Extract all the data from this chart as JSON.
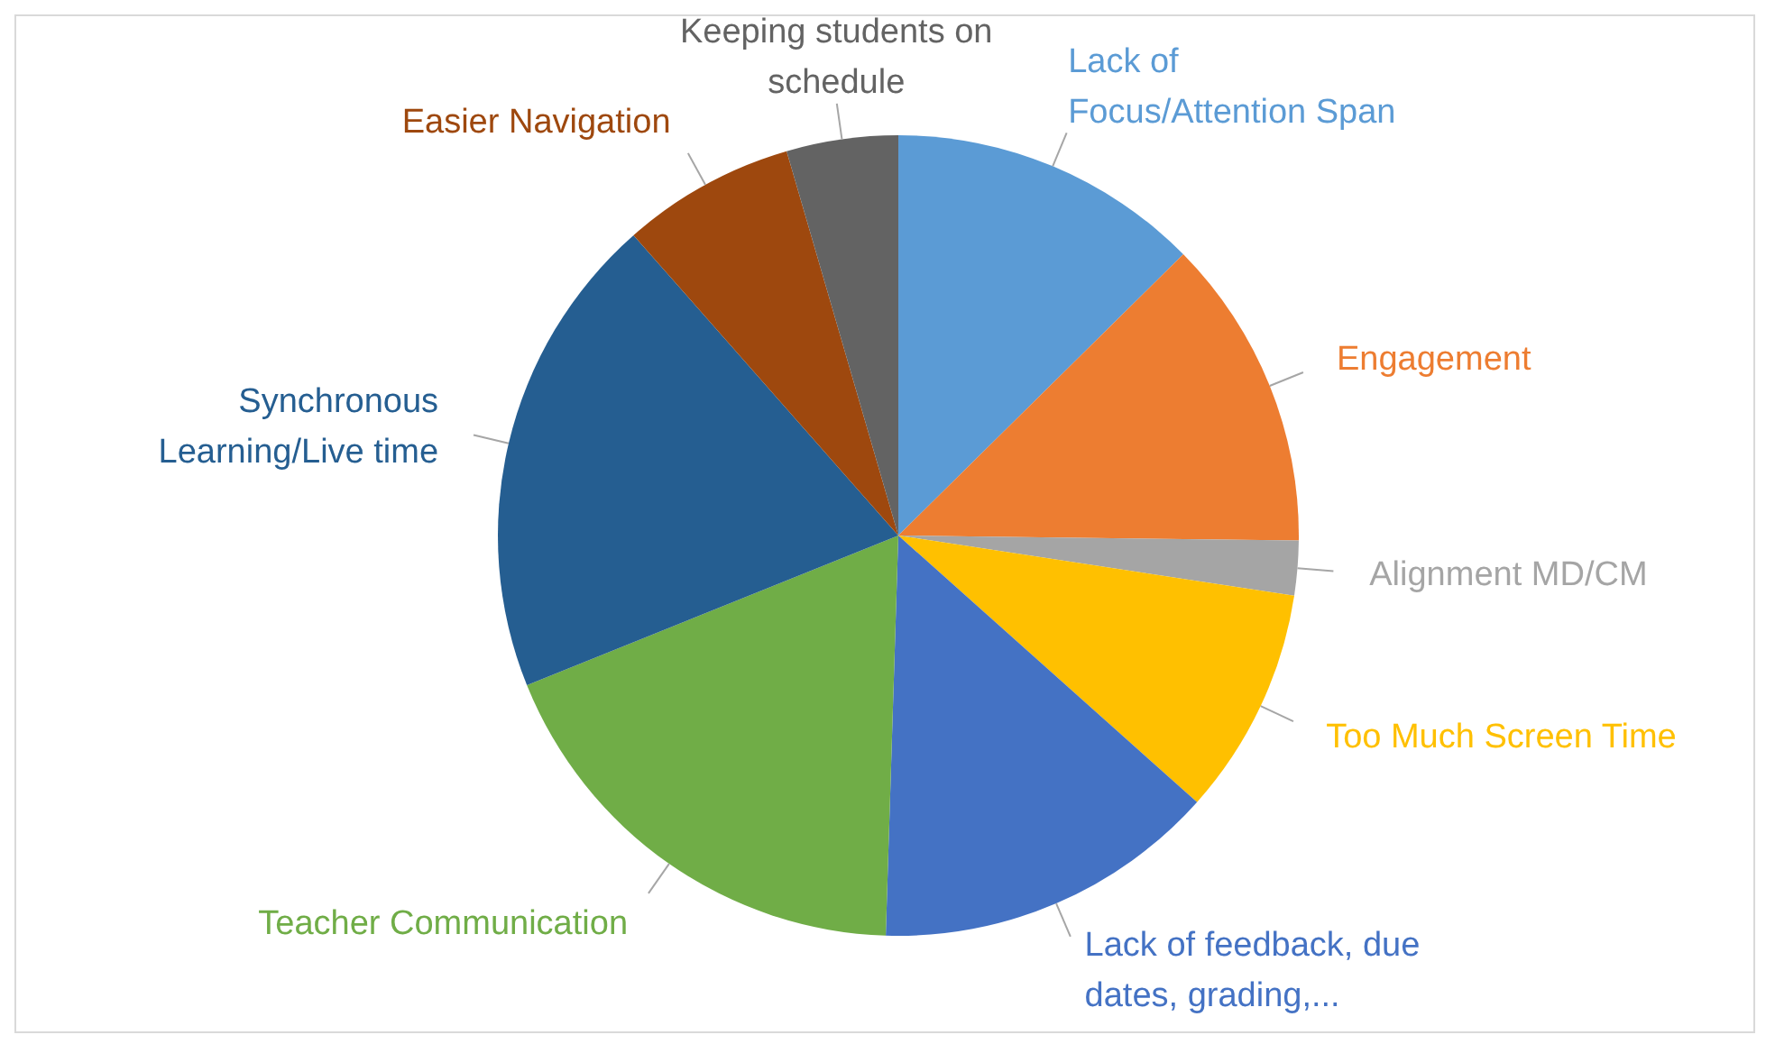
{
  "chart_data": {
    "type": "pie",
    "categories": [
      "Lack of Focus/Attention Span",
      "Engagement",
      "Alignment MD/CM",
      "Too Much Screen Time",
      "Lack of feedback, due dates, grading,...",
      "Teacher Communication",
      "Synchronous Learning/Live time",
      "Easier Navigation",
      "Keeping students on schedule"
    ],
    "values": [
      12.6,
      12.6,
      2.2,
      9.2,
      13.9,
      18.4,
      19.6,
      7.0,
      4.5
    ],
    "colors": [
      "#5b9bd5",
      "#ed7d31",
      "#a5a5a5",
      "#ffc000",
      "#4472c4",
      "#70ad47",
      "#255e91",
      "#9e480e",
      "#636363"
    ],
    "legend": false
  }
}
